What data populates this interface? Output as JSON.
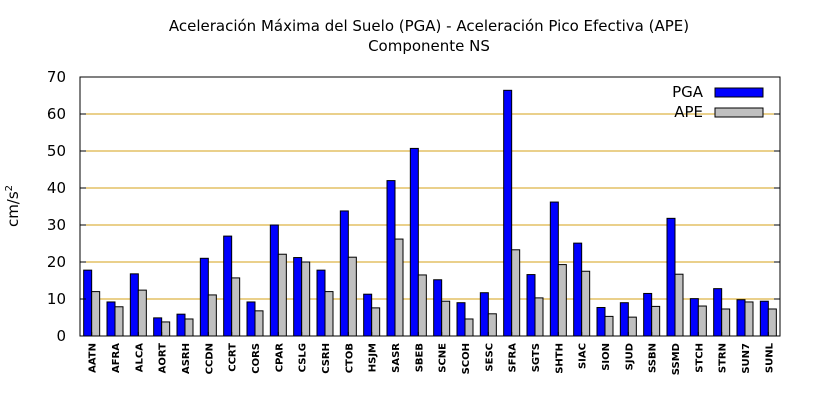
{
  "chart_data": {
    "type": "bar",
    "title": "Aceleración Máxima del Suelo (PGA) -  Aceleración Pico Efectiva (APE)",
    "subtitle": "Componente NS",
    "xlabel": "",
    "ylabel": "cm/s",
    "ylabel_superscript": "2",
    "ylim": [
      0,
      70
    ],
    "yticks": [
      0,
      10,
      20,
      30,
      40,
      50,
      60,
      70
    ],
    "grid": "horizontal",
    "legend_position": "top-right",
    "categories": [
      "AATN",
      "AFRA",
      "ALCA",
      "AORT",
      "ASRH",
      "CCDN",
      "CCRT",
      "CORS",
      "CPAR",
      "CSLG",
      "CSRH",
      "CTOB",
      "HSJM",
      "SASR",
      "SBEB",
      "SCNE",
      "SCOH",
      "SESC",
      "SFRA",
      "SGTS",
      "SHTH",
      "SIAC",
      "SION",
      "SJUD",
      "SSBN",
      "SSMD",
      "STCH",
      "STRN",
      "SUN7",
      "SUNL"
    ],
    "series": [
      {
        "name": "PGA",
        "color": "#0000ff",
        "values": [
          17.8,
          9.2,
          16.8,
          4.9,
          5.9,
          21.0,
          27.0,
          9.2,
          30.0,
          21.2,
          17.8,
          33.8,
          11.3,
          42.0,
          50.7,
          15.2,
          9.0,
          11.7,
          66.4,
          16.6,
          36.2,
          25.1,
          7.7,
          9.0,
          11.5,
          31.8,
          10.1,
          12.8,
          9.8,
          9.4
        ]
      },
      {
        "name": "APE",
        "color": "#c0c0c0",
        "values": [
          12.0,
          7.9,
          12.4,
          3.8,
          4.6,
          11.1,
          15.7,
          6.8,
          22.1,
          20.0,
          12.0,
          21.3,
          7.6,
          26.2,
          16.5,
          9.4,
          4.6,
          6.0,
          23.3,
          10.3,
          19.3,
          17.5,
          5.3,
          5.1,
          8.0,
          16.7,
          8.1,
          7.3,
          9.2,
          7.3
        ]
      }
    ]
  }
}
